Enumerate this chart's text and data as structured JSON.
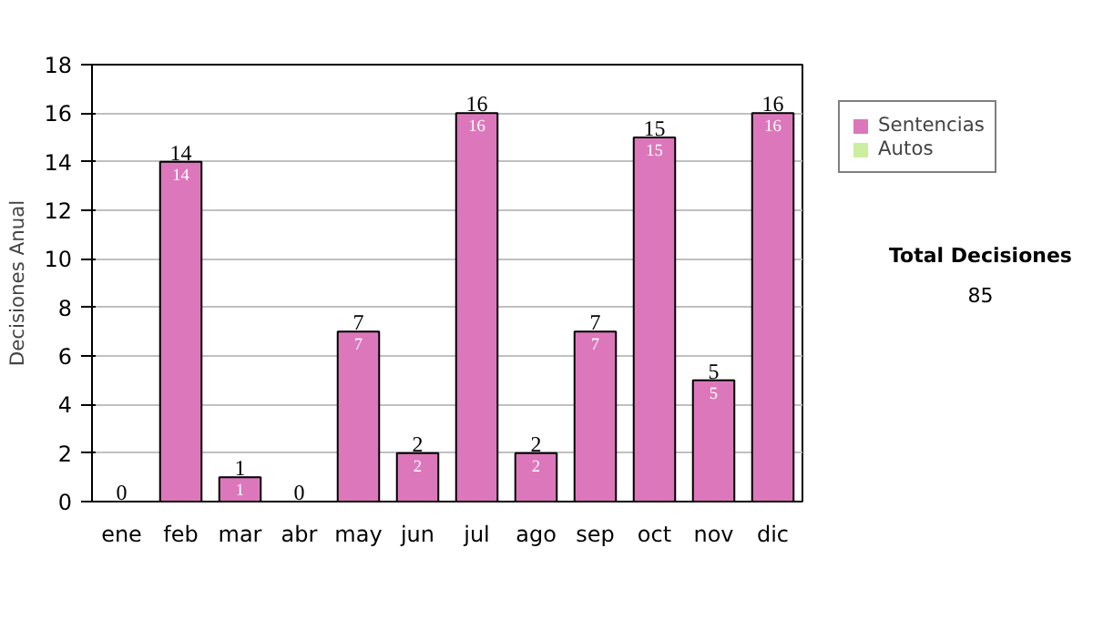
{
  "chart_data": {
    "type": "bar",
    "stacked": true,
    "ylabel": "Decisiones Anual",
    "categories": [
      "ene",
      "feb",
      "mar",
      "abr",
      "may",
      "jun",
      "jul",
      "ago",
      "sep",
      "oct",
      "nov",
      "dic"
    ],
    "series": [
      {
        "name": "Sentencias",
        "color": "#dd77bb",
        "values": [
          0,
          14,
          1,
          0,
          7,
          2,
          16,
          2,
          7,
          15,
          5,
          16
        ],
        "value_labels": [
          null,
          "14",
          "1",
          null,
          "7",
          "2",
          "16",
          "2",
          "7",
          "15",
          "5",
          "16"
        ]
      },
      {
        "name": "Autos",
        "color": "#cceea0",
        "values": [
          0,
          0,
          0,
          0,
          0,
          0,
          0,
          0,
          0,
          0,
          0,
          0
        ]
      }
    ],
    "totals": [
      "0",
      "14",
      "1",
      "0",
      "7",
      "2",
      "16",
      "2",
      "7",
      "15",
      "5",
      "16"
    ],
    "ylim": [
      0,
      18
    ],
    "yticks": [
      0,
      2,
      4,
      6,
      8,
      10,
      12,
      14,
      16,
      18
    ],
    "grid": "y",
    "legend": "right",
    "annotations": [
      "Total Decisiones",
      "85"
    ]
  }
}
